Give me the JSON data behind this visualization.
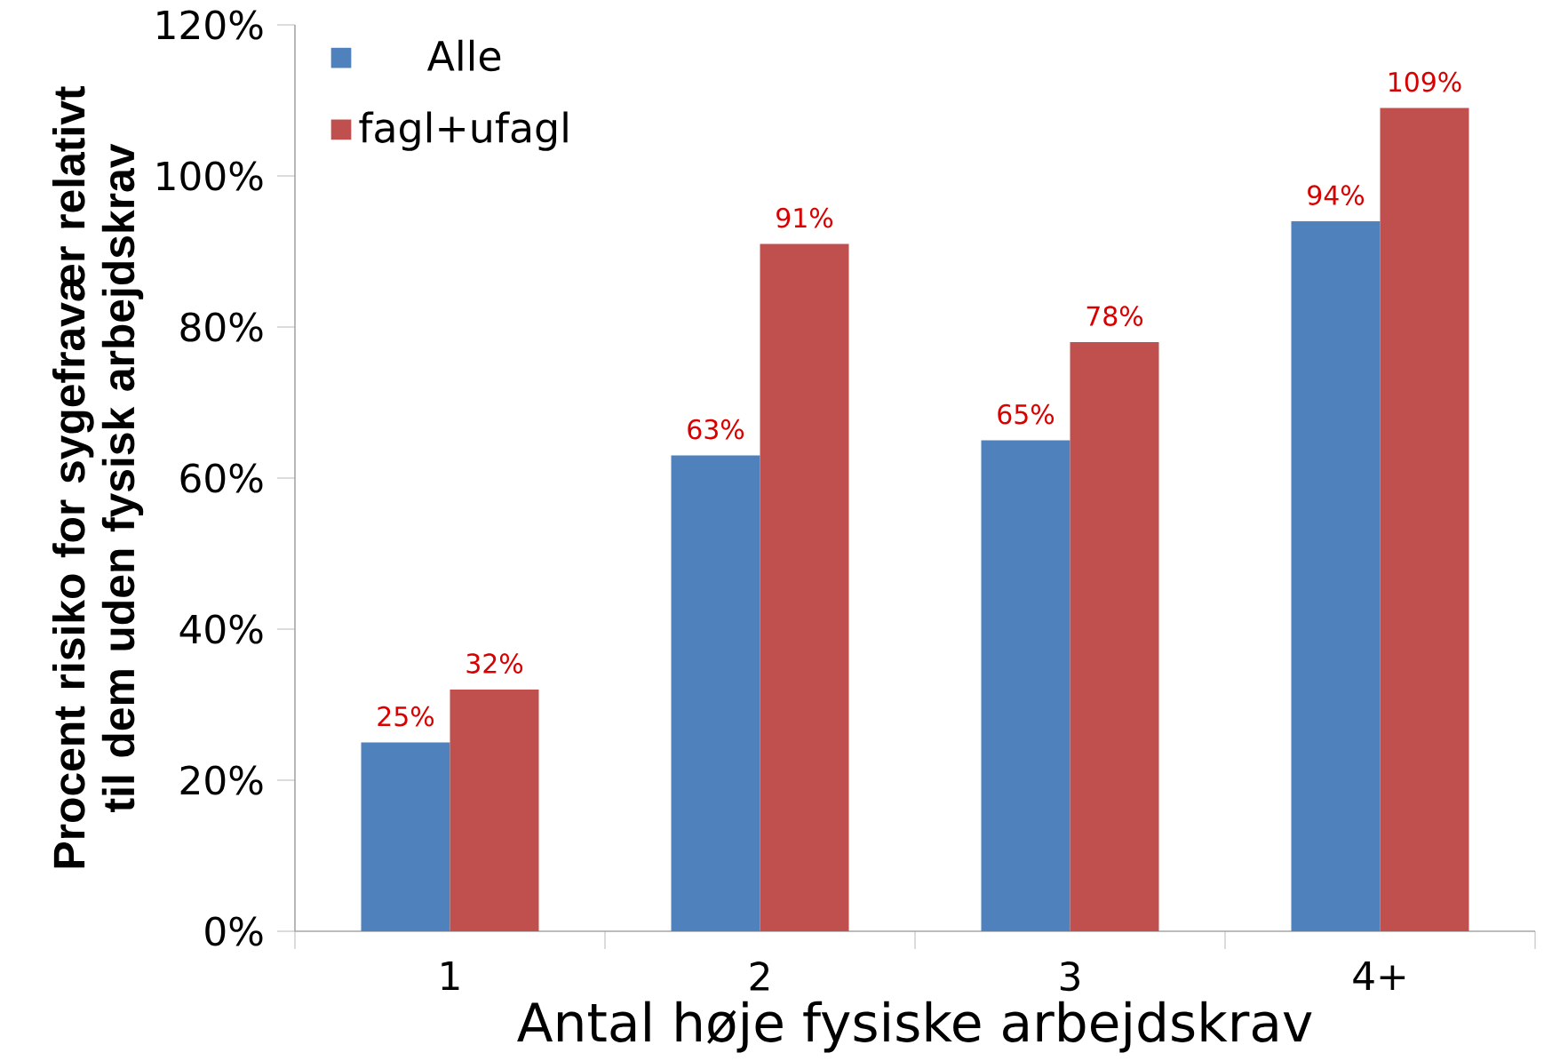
{
  "chart_data": {
    "type": "bar",
    "xlabel": "Antal høje fysiske arbejdskrav",
    "ylabel": "Procent risiko for sygefravær relativt til dem uden fysisk arbejdskrav",
    "categories": [
      "1",
      "2",
      "3",
      "4+"
    ],
    "series": [
      {
        "name": "Alle",
        "color": "#4f81bd",
        "values": [
          25,
          63,
          65,
          94
        ],
        "value_labels": [
          "25%",
          "63%",
          "65%",
          "94%"
        ]
      },
      {
        "name": "fagl+ufagl",
        "color": "#c0504d",
        "values": [
          32,
          91,
          78,
          109
        ],
        "value_labels": [
          "32%",
          "91%",
          "78%",
          "109%"
        ]
      }
    ],
    "ylim": [
      0,
      120
    ],
    "yticks": [
      {
        "value": 0,
        "label": "0%"
      },
      {
        "value": 20,
        "label": "20%"
      },
      {
        "value": 40,
        "label": "40%"
      },
      {
        "value": 60,
        "label": "60%"
      },
      {
        "value": 80,
        "label": "80%"
      },
      {
        "value": 100,
        "label": "100%"
      },
      {
        "value": 120,
        "label": "120%"
      }
    ],
    "grid": false,
    "legend": "top left"
  }
}
